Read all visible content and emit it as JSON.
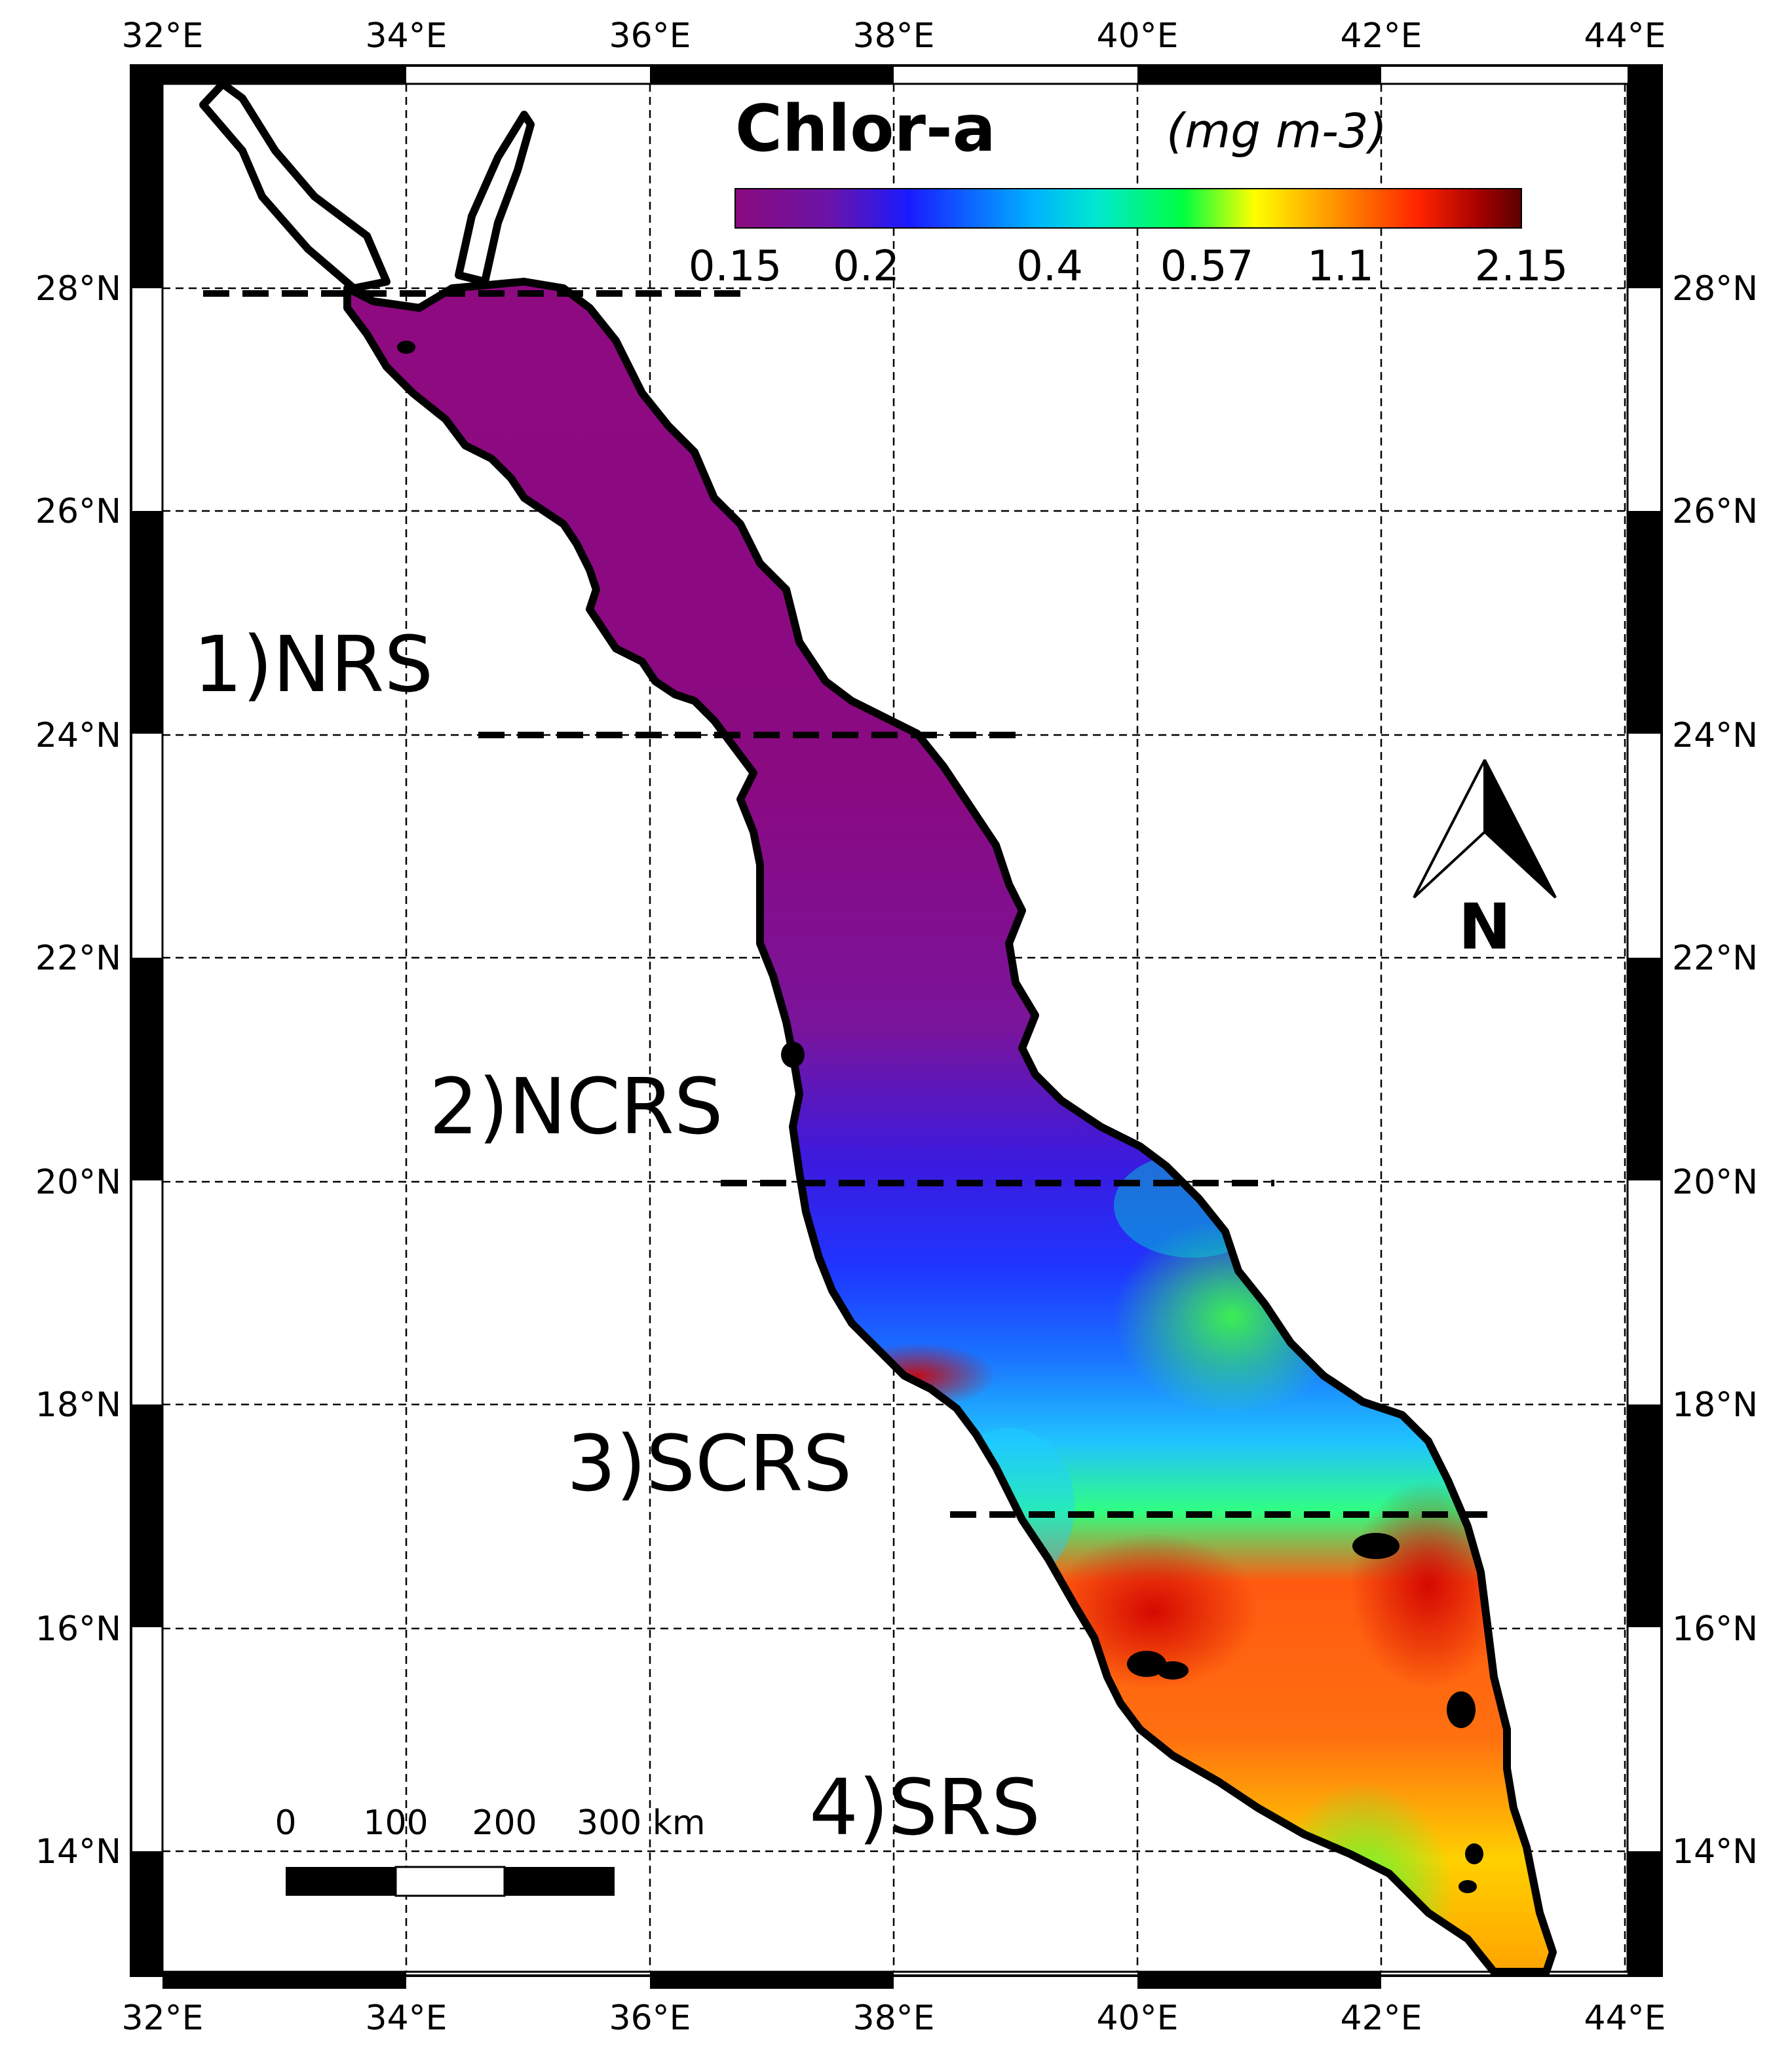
{
  "legend": {
    "title": "Chlor-a",
    "units": "(mg m-3)",
    "ticks": [
      "0.15",
      "0.2",
      "0.4",
      "0.57",
      "1.1",
      "2.15"
    ],
    "colors": [
      "#8a0a7e",
      "#6a14a8",
      "#1a1aff",
      "#00b2ff",
      "#00e8d0",
      "#00ff40",
      "#ffff00",
      "#ffa000",
      "#ff2200",
      "#a00000",
      "#5a0000"
    ]
  },
  "axes": {
    "lon_labels": [
      "32°E",
      "34°E",
      "36°E",
      "38°E",
      "40°E",
      "42°E",
      "44°E"
    ],
    "lat_labels": [
      "28°N",
      "26°N",
      "24°N",
      "22°N",
      "20°N",
      "18°N",
      "16°N",
      "14°N"
    ]
  },
  "regions": [
    {
      "label": "1)NRS"
    },
    {
      "label": "2)NCRS"
    },
    {
      "label": "3)SCRS"
    },
    {
      "label": "4)SRS"
    }
  ],
  "north_arrow": {
    "label": "N"
  },
  "scale_bar": {
    "labels": [
      "0",
      "100",
      "200",
      "300 km"
    ]
  }
}
